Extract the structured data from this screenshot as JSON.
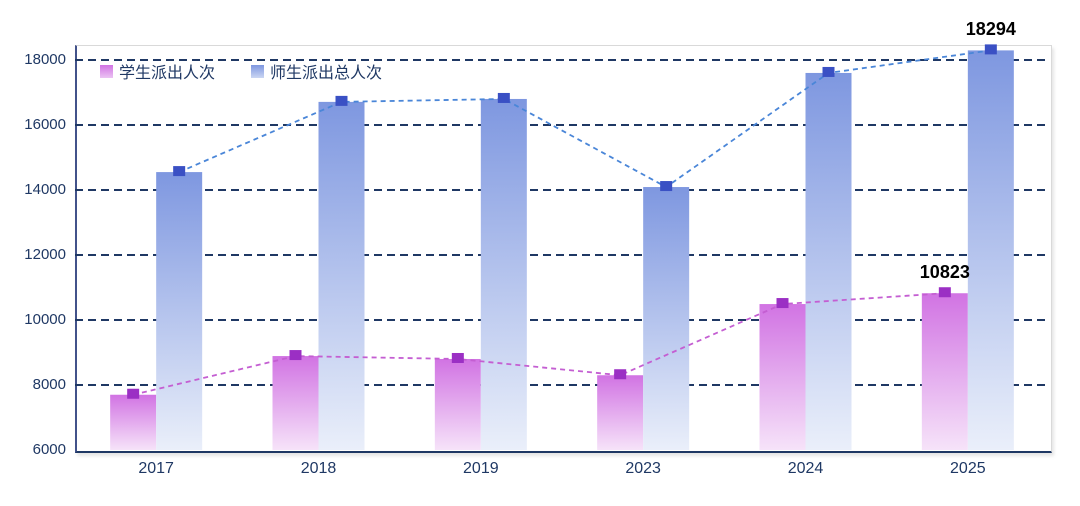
{
  "colors": {
    "axis_text": "#1f3864",
    "gridline": "#1f3864",
    "plot_border_light": "#d9d9d9",
    "axis_line": "#1f3864",
    "data_label_text": "#000000"
  },
  "chart_data": {
    "type": "bar",
    "subtype": "grouped bars with dashed line + square markers overlay per series",
    "title": "",
    "xlabel": "",
    "ylabel": "",
    "categories": [
      "2017",
      "2018",
      "2019",
      "2023",
      "2024",
      "2025"
    ],
    "series": [
      {
        "name": "学生派出人次",
        "values": [
          7700,
          8890,
          8800,
          8300,
          10490,
          10823
        ],
        "bar_top_color": "#d173e3",
        "bar_bottom_color": "#f6e3f9",
        "line_color": "#c45ed2",
        "marker_color": "#9b2fc4"
      },
      {
        "name": "师生派出总人次",
        "values": [
          14550,
          16710,
          16800,
          14090,
          17600,
          18294
        ],
        "bar_top_color": "#7e97e0",
        "bar_bottom_color": "#eaeffa",
        "line_color": "#4a86d8",
        "marker_color": "#3a50c4"
      }
    ],
    "data_labels": [
      {
        "series": 1,
        "category": "2025",
        "text": "18294"
      },
      {
        "series": 0,
        "category": "2025",
        "text": "10823"
      }
    ],
    "ylim": [
      6000,
      18460
    ],
    "yticks": [
      6000,
      8000,
      10000,
      12000,
      14000,
      16000,
      18000
    ],
    "grid": "horizontal dashed navy lines at each ytick above baseline",
    "legend_position": "top-left inside plot area"
  }
}
